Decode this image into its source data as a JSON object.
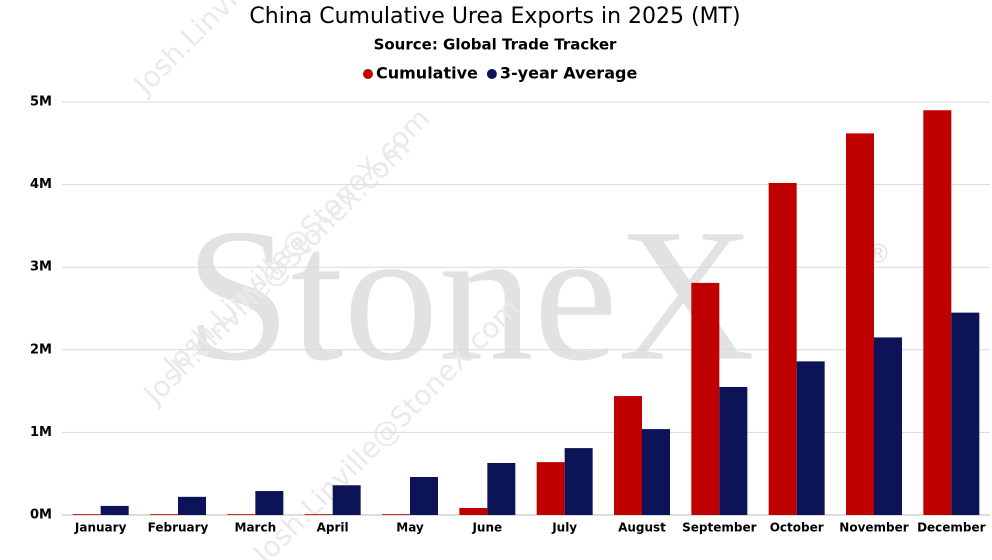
{
  "chart_data": {
    "type": "bar",
    "title": "China Cumulative Urea Exports in 2025 (MT)",
    "subtitle": "Source: Global Trade Tracker",
    "categories": [
      "January",
      "February",
      "March",
      "April",
      "May",
      "June",
      "July",
      "August",
      "September",
      "October",
      "November",
      "December"
    ],
    "series": [
      {
        "name": "Cumulative",
        "color": "#c00000",
        "values": [
          10000,
          10000,
          10000,
          10000,
          10000,
          85000,
          640000,
          1440000,
          2810000,
          4020000,
          4620000,
          4900000
        ]
      },
      {
        "name": "3-year Average",
        "color": "#0c1457",
        "values": [
          110000,
          220000,
          290000,
          360000,
          460000,
          630000,
          810000,
          1040000,
          1550000,
          1860000,
          2150000,
          2450000
        ]
      }
    ],
    "ylim": [
      0,
      5000000
    ],
    "yticks": [
      {
        "value": 0,
        "label": "0M"
      },
      {
        "value": 1000000,
        "label": "1M"
      },
      {
        "value": 2000000,
        "label": "2M"
      },
      {
        "value": 3000000,
        "label": "3M"
      },
      {
        "value": 4000000,
        "label": "4M"
      },
      {
        "value": 5000000,
        "label": "5M"
      }
    ],
    "grid": true,
    "legend": "top"
  },
  "watermark": {
    "logo": "StoneX",
    "mark": "®",
    "email": "Josh.Linville@StoneX.com"
  }
}
